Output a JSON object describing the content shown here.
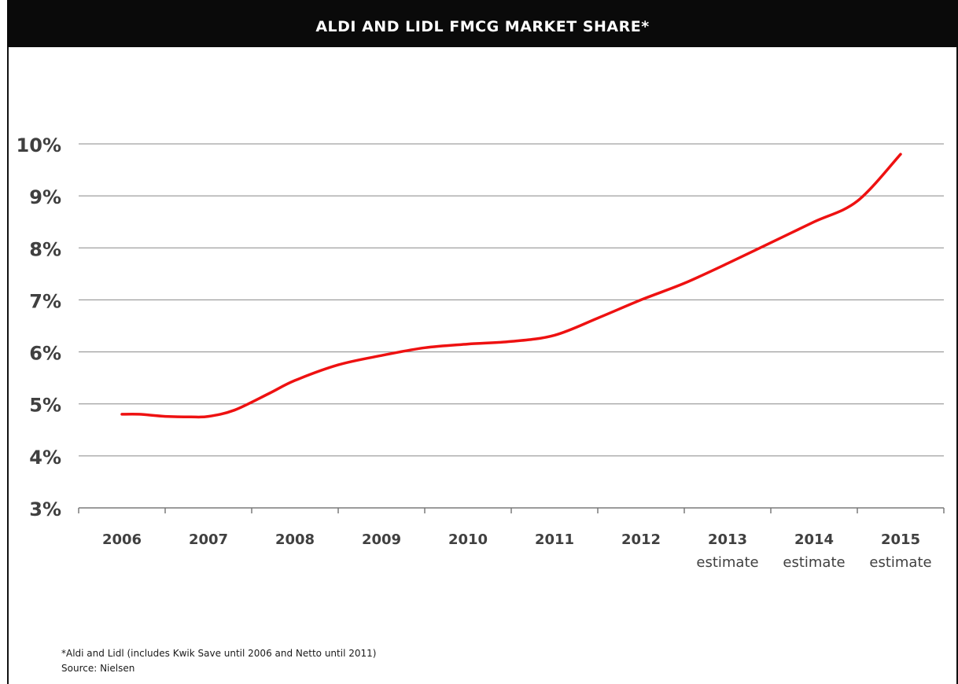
{
  "header": {
    "title": "ALDI AND LIDL FMCG MARKET SHARE*"
  },
  "footnote": {
    "note": "*Aldi and Lidl (includes Kwik Save until 2006 and Netto until 2011)",
    "source": "Source: Nielsen"
  },
  "colors": {
    "line": "#ee1111",
    "grid": "#888888",
    "axis": "#7a7a7a",
    "tick_label": "#404040",
    "title_bar": "#0a0a0a"
  },
  "chart_data": {
    "type": "line",
    "title": "ALDI AND LIDL FMCG MARKET SHARE*",
    "xlabel": "",
    "ylabel": "",
    "categories": [
      "2006",
      "2007",
      "2008",
      "2009",
      "2010",
      "2011",
      "2012",
      "2013",
      "2014",
      "2015"
    ],
    "category_sublabels": [
      "",
      "",
      "",
      "",
      "",
      "",
      "",
      "estimate",
      "estimate",
      "estimate"
    ],
    "y_ticks": [
      3,
      4,
      5,
      6,
      7,
      8,
      9,
      10
    ],
    "y_tick_labels": [
      "3%",
      "4%",
      "5%",
      "6%",
      "7%",
      "8%",
      "9%",
      "10%"
    ],
    "ylim": [
      3,
      10
    ],
    "grid": true,
    "legend": "none",
    "series": [
      {
        "name": "",
        "x": [
          0,
          0.2,
          0.5,
          0.8,
          1.0,
          1.3,
          1.7,
          2.0,
          2.5,
          3.0,
          3.5,
          4.0,
          4.5,
          5.0,
          5.5,
          6.0,
          6.5,
          7.0,
          7.5,
          8.0,
          8.5,
          9.0
        ],
        "values": [
          4.8,
          4.8,
          4.76,
          4.75,
          4.76,
          4.88,
          5.2,
          5.45,
          5.75,
          5.93,
          6.08,
          6.15,
          6.2,
          6.32,
          6.65,
          7.0,
          7.32,
          7.7,
          8.1,
          8.5,
          8.9,
          9.8
        ]
      }
    ]
  }
}
